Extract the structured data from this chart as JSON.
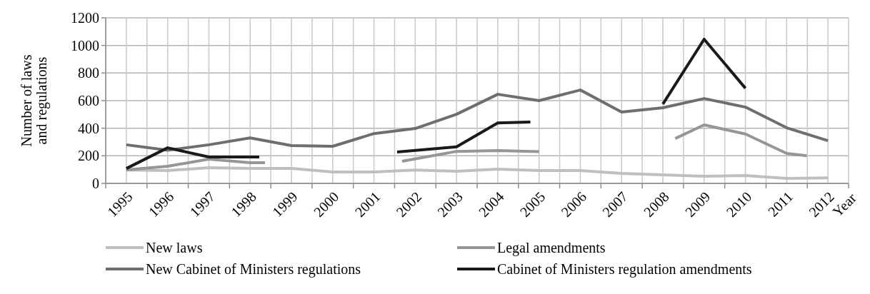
{
  "chart_data": {
    "type": "line",
    "xlabel": "Year",
    "ylabel": "Number of laws and regulations",
    "xlim": [
      1994.5,
      2012.5
    ],
    "xticks": [
      {
        "value": 1994.5,
        "label": null
      },
      {
        "value": 1995,
        "label": "1995"
      },
      {
        "value": 1995.5,
        "label": null
      },
      {
        "value": 1996,
        "label": "1996"
      },
      {
        "value": 1996.5,
        "label": null
      },
      {
        "value": 1997,
        "label": "1997"
      },
      {
        "value": 1997.5,
        "label": null
      },
      {
        "value": 1998,
        "label": "1998"
      },
      {
        "value": 1998.5,
        "label": null
      },
      {
        "value": 1999,
        "label": "1999"
      },
      {
        "value": 1999.5,
        "label": null
      },
      {
        "value": 2000,
        "label": "2000"
      },
      {
        "value": 2000.5,
        "label": null
      },
      {
        "value": 2001,
        "label": "2001"
      },
      {
        "value": 2001.5,
        "label": null
      },
      {
        "value": 2002,
        "label": "2002"
      },
      {
        "value": 2002.5,
        "label": null
      },
      {
        "value": 2003,
        "label": "2003"
      },
      {
        "value": 2003.5,
        "label": null
      },
      {
        "value": 2004,
        "label": "2004"
      },
      {
        "value": 2004.5,
        "label": null
      },
      {
        "value": 2005,
        "label": "2005"
      },
      {
        "value": 2005.5,
        "label": null
      },
      {
        "value": 2006,
        "label": "2006"
      },
      {
        "value": 2006.5,
        "label": null
      },
      {
        "value": 2007,
        "label": "2007"
      },
      {
        "value": 2007.5,
        "label": null
      },
      {
        "value": 2008,
        "label": "2008"
      },
      {
        "value": 2008.5,
        "label": null
      },
      {
        "value": 2009,
        "label": "2009"
      },
      {
        "value": 2009.5,
        "label": null
      },
      {
        "value": 2010,
        "label": "2010"
      },
      {
        "value": 2010.5,
        "label": null
      },
      {
        "value": 2011,
        "label": "2011"
      },
      {
        "value": 2011.5,
        "label": null
      },
      {
        "value": 2012,
        "label": "2012"
      },
      {
        "value": 2012.5,
        "label": null
      }
    ],
    "ylim": [
      0,
      1200
    ],
    "yticks": [
      0,
      200,
      400,
      600,
      800,
      1000,
      1200
    ],
    "grid": true,
    "legend": "bottom",
    "marker": "none",
    "line_style": "solid",
    "series": [
      {
        "name": "New laws",
        "color": "#bfbfbf",
        "x": [
          1995,
          1996,
          1997,
          1998,
          1999,
          2000,
          2001,
          2002,
          2003,
          2004,
          2005,
          2006,
          2007,
          2008,
          2009,
          2010,
          2011,
          2012
        ],
        "values": [
          97,
          93,
          114,
          109,
          109,
          83,
          83,
          97,
          88,
          104,
          93,
          93,
          72,
          62,
          52,
          57,
          36,
          40
        ]
      },
      {
        "name": "Legal amendments",
        "color": "#969696",
        "x": [
          1995,
          1996,
          1997,
          1998,
          1998.36,
          2000,
          2001.68,
          2003,
          2004,
          2005,
          2007,
          2008.3,
          2009,
          2010,
          2011,
          2011.49
        ],
        "values": [
          98,
          124,
          176,
          150,
          150,
          null,
          160,
          232,
          238,
          230,
          null,
          325,
          424,
          358,
          217,
          200
        ]
      },
      {
        "name": "New Cabinet of Ministers regulations",
        "color": "#6e6e6e",
        "x": [
          1995,
          1996,
          1997,
          1998,
          1999,
          2000,
          2001,
          2002,
          2003,
          2004,
          2005,
          2006,
          2007,
          2008,
          2009,
          2010,
          2011,
          2012
        ],
        "values": [
          280,
          240,
          280,
          330,
          274,
          269,
          361,
          398,
          501,
          646,
          600,
          677,
          517,
          548,
          615,
          553,
          403,
          310
        ]
      },
      {
        "name": "Cabinet of Ministers regulation amendments",
        "color": "#1a1a1a",
        "x": [
          1995,
          1996,
          1997,
          1998,
          1998.22,
          2000,
          2001.56,
          2003,
          2004,
          2004.79,
          2006,
          2008,
          2009,
          2010
        ],
        "values": [
          108,
          258,
          191,
          191,
          191,
          null,
          227,
          265,
          438,
          445,
          null,
          575,
          1045,
          690
        ]
      }
    ]
  }
}
